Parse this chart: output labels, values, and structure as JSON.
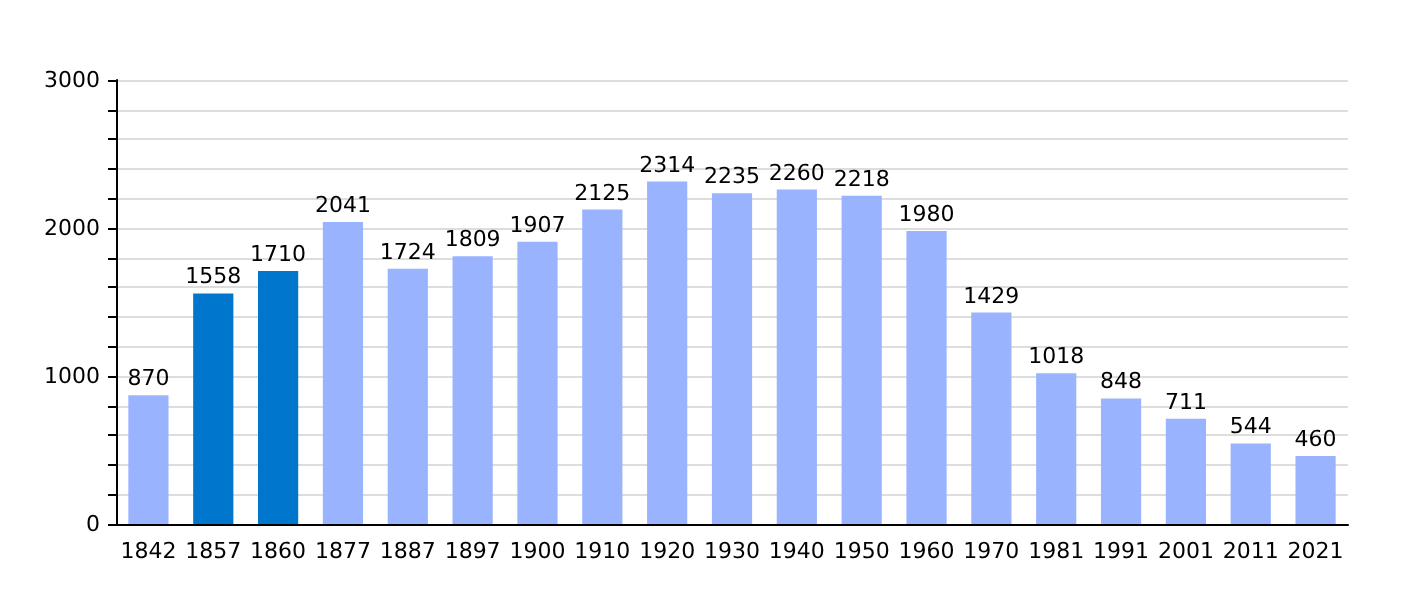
{
  "chart_data": {
    "type": "bar",
    "categories": [
      "1842",
      "1857",
      "1860",
      "1877",
      "1887",
      "1897",
      "1900",
      "1910",
      "1920",
      "1930",
      "1940",
      "1950",
      "1960",
      "1970",
      "1981",
      "1991",
      "2001",
      "2011",
      "2021"
    ],
    "values": [
      870,
      1558,
      1710,
      2041,
      1724,
      1809,
      1907,
      2125,
      2314,
      2235,
      2260,
      2218,
      1980,
      1429,
      1018,
      848,
      711,
      544,
      460
    ],
    "colors": [
      "#99b3ff",
      "#0077cc",
      "#0077cc",
      "#99b3ff",
      "#99b3ff",
      "#99b3ff",
      "#99b3ff",
      "#99b3ff",
      "#99b3ff",
      "#99b3ff",
      "#99b3ff",
      "#99b3ff",
      "#99b3ff",
      "#99b3ff",
      "#99b3ff",
      "#99b3ff",
      "#99b3ff",
      "#99b3ff",
      "#99b3ff"
    ],
    "ylim": [
      0,
      3000
    ],
    "yticks": [
      0,
      {
        "value": 200,
        "label": null
      },
      {
        "value": 400,
        "label": null
      },
      {
        "value": 600,
        "label": null
      },
      {
        "value": 800,
        "label": null
      },
      1000,
      {
        "value": 1200,
        "label": null
      },
      {
        "value": 1400,
        "label": null
      },
      {
        "value": 1600,
        "label": null
      },
      {
        "value": 1800,
        "label": null
      },
      2000,
      {
        "value": 2200,
        "label": null
      },
      {
        "value": 2400,
        "label": null
      },
      {
        "value": 2600,
        "label": null
      },
      {
        "value": 2800,
        "label": null
      },
      3000
    ],
    "grid": "y",
    "data_labels": true
  }
}
